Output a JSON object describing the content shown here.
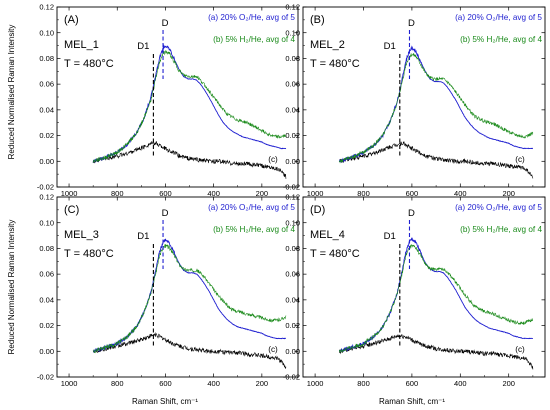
{
  "colors": {
    "a": "#1f1fd0",
    "b": "#1a8a1a",
    "c": "#000000",
    "marker": "#000000",
    "markerD": "#2020d0"
  },
  "y_axis_label": "Reduced Normalised Raman Intensity",
  "x_axis_label": "Raman Shift, cm⁻¹",
  "chart_data": [
    {
      "type": "line",
      "panel": "(A)",
      "sample": "MEL_1",
      "temperature": "T = 480°C",
      "xlabel": "Raman Shift, cm⁻¹",
      "ylabel": "Reduced Normalised Raman Intensity",
      "xlim": [
        1050,
        50
      ],
      "ylim": [
        -0.02,
        0.12
      ],
      "xticks": [
        1000,
        800,
        600,
        400,
        200
      ],
      "yticks": [
        -0.02,
        0.0,
        0.02,
        0.04,
        0.06,
        0.08,
        0.1,
        0.12
      ],
      "markers": [
        {
          "label": "D1",
          "x": 650
        },
        {
          "label": "D",
          "x": 610
        }
      ],
      "series": [
        {
          "name": "(a) 20% O₂/He, avg of 5",
          "key": "a",
          "x": [
            900,
            850,
            800,
            760,
            720,
            690,
            660,
            640,
            625,
            610,
            600,
            585,
            565,
            545,
            525,
            505,
            485,
            470,
            455,
            440,
            420,
            400,
            380,
            360,
            340,
            320,
            300,
            280,
            260,
            240,
            220,
            200,
            180,
            160,
            140,
            120,
            100
          ],
          "y": [
            0.0,
            0.003,
            0.007,
            0.013,
            0.022,
            0.033,
            0.05,
            0.067,
            0.08,
            0.088,
            0.09,
            0.088,
            0.08,
            0.072,
            0.066,
            0.064,
            0.064,
            0.063,
            0.06,
            0.056,
            0.05,
            0.043,
            0.036,
            0.03,
            0.026,
            0.023,
            0.021,
            0.019,
            0.018,
            0.017,
            0.016,
            0.015,
            0.013,
            0.012,
            0.011,
            0.01,
            0.01
          ]
        },
        {
          "name": "(b) 5% H₂/He,  avg of 4",
          "key": "b",
          "x": [
            900,
            850,
            800,
            760,
            720,
            690,
            660,
            640,
            625,
            610,
            600,
            585,
            565,
            545,
            525,
            505,
            485,
            470,
            455,
            440,
            420,
            400,
            380,
            360,
            340,
            320,
            300,
            280,
            260,
            240,
            220,
            200,
            180,
            160,
            140,
            120,
            100
          ],
          "y": [
            0.0,
            0.003,
            0.007,
            0.013,
            0.022,
            0.033,
            0.048,
            0.064,
            0.077,
            0.084,
            0.085,
            0.084,
            0.078,
            0.071,
            0.067,
            0.066,
            0.066,
            0.066,
            0.063,
            0.06,
            0.055,
            0.05,
            0.045,
            0.04,
            0.036,
            0.034,
            0.032,
            0.031,
            0.03,
            0.028,
            0.026,
            0.024,
            0.022,
            0.02,
            0.019,
            0.019,
            0.02
          ]
        },
        {
          "name": "(c)",
          "key": "c",
          "x": [
            900,
            850,
            800,
            760,
            720,
            690,
            660,
            640,
            620,
            600,
            570,
            540,
            500,
            460,
            420,
            380,
            340,
            300,
            260,
            220,
            180,
            150,
            130,
            115,
            100
          ],
          "y": [
            0.0,
            0.002,
            0.004,
            0.006,
            0.009,
            0.011,
            0.014,
            0.014,
            0.012,
            0.01,
            0.007,
            0.004,
            0.002,
            0.001,
            0.0,
            0.0,
            -0.001,
            -0.002,
            -0.002,
            -0.003,
            -0.004,
            -0.005,
            -0.006,
            -0.009,
            -0.012
          ]
        }
      ]
    },
    {
      "type": "line",
      "panel": "(B)",
      "sample": "MEL_2",
      "temperature": "T = 480°C",
      "xlabel": "Raman Shift, cm⁻¹",
      "ylabel": "Reduced Normalised Raman Intensity",
      "xlim": [
        1050,
        50
      ],
      "ylim": [
        -0.02,
        0.12
      ],
      "xticks": [
        1000,
        800,
        600,
        400,
        200
      ],
      "yticks": [
        -0.02,
        0.0,
        0.02,
        0.04,
        0.06,
        0.08,
        0.1,
        0.12
      ],
      "markers": [
        {
          "label": "D1",
          "x": 650
        },
        {
          "label": "D",
          "x": 610
        }
      ],
      "series": [
        {
          "name": "(a) 20% O₂/He, avg of 5",
          "key": "a",
          "x": [
            900,
            850,
            800,
            760,
            720,
            690,
            660,
            640,
            625,
            610,
            600,
            585,
            565,
            545,
            525,
            505,
            485,
            470,
            455,
            440,
            420,
            400,
            380,
            360,
            340,
            320,
            300,
            280,
            260,
            240,
            220,
            200,
            180,
            160,
            140,
            120,
            100
          ],
          "y": [
            0.0,
            0.003,
            0.007,
            0.012,
            0.02,
            0.031,
            0.047,
            0.064,
            0.078,
            0.086,
            0.088,
            0.086,
            0.078,
            0.07,
            0.064,
            0.062,
            0.062,
            0.061,
            0.058,
            0.054,
            0.048,
            0.041,
            0.034,
            0.029,
            0.025,
            0.022,
            0.02,
            0.018,
            0.017,
            0.016,
            0.015,
            0.014,
            0.012,
            0.011,
            0.01,
            0.01,
            0.01
          ]
        },
        {
          "name": "(b) 5% H₂/He,  avg of 4",
          "key": "b",
          "x": [
            900,
            850,
            800,
            760,
            720,
            690,
            660,
            640,
            625,
            610,
            600,
            585,
            565,
            545,
            525,
            505,
            485,
            470,
            455,
            440,
            420,
            400,
            380,
            360,
            340,
            320,
            300,
            280,
            260,
            240,
            220,
            200,
            180,
            160,
            140,
            120,
            100
          ],
          "y": [
            0.0,
            0.003,
            0.007,
            0.012,
            0.02,
            0.031,
            0.046,
            0.062,
            0.075,
            0.082,
            0.083,
            0.082,
            0.076,
            0.069,
            0.065,
            0.064,
            0.064,
            0.064,
            0.062,
            0.059,
            0.054,
            0.049,
            0.044,
            0.039,
            0.035,
            0.033,
            0.031,
            0.03,
            0.029,
            0.027,
            0.025,
            0.023,
            0.021,
            0.02,
            0.019,
            0.02,
            0.022
          ]
        },
        {
          "name": "(c)",
          "key": "c",
          "x": [
            900,
            850,
            800,
            760,
            720,
            690,
            660,
            640,
            620,
            600,
            570,
            540,
            500,
            460,
            420,
            380,
            340,
            300,
            260,
            220,
            180,
            150,
            130,
            115,
            100
          ],
          "y": [
            0.0,
            0.002,
            0.004,
            0.006,
            0.009,
            0.011,
            0.013,
            0.014,
            0.012,
            0.01,
            0.007,
            0.004,
            0.002,
            0.001,
            0.0,
            0.0,
            -0.001,
            -0.002,
            -0.002,
            -0.003,
            -0.004,
            -0.005,
            -0.006,
            -0.009,
            -0.013
          ]
        }
      ]
    },
    {
      "type": "line",
      "panel": "(C)",
      "sample": "MEL_3",
      "temperature": "T = 480°C",
      "xlabel": "Raman Shift, cm⁻¹",
      "ylabel": "Reduced Normalised Raman Intensity",
      "xlim": [
        1050,
        50
      ],
      "ylim": [
        -0.02,
        0.12
      ],
      "xticks": [
        1000,
        800,
        600,
        400,
        200
      ],
      "yticks": [
        -0.02,
        0.0,
        0.02,
        0.04,
        0.06,
        0.08,
        0.1,
        0.12
      ],
      "markers": [
        {
          "label": "D1",
          "x": 650
        },
        {
          "label": "D",
          "x": 610
        }
      ],
      "series": [
        {
          "name": "(a) 20% O₂/He, avg of 5",
          "key": "a",
          "x": [
            900,
            850,
            800,
            760,
            720,
            690,
            660,
            640,
            625,
            610,
            600,
            585,
            565,
            545,
            525,
            505,
            485,
            470,
            455,
            440,
            420,
            400,
            380,
            360,
            340,
            320,
            300,
            280,
            260,
            240,
            220,
            200,
            180,
            160,
            140,
            120,
            100
          ],
          "y": [
            0.0,
            0.003,
            0.006,
            0.011,
            0.019,
            0.03,
            0.046,
            0.063,
            0.077,
            0.085,
            0.087,
            0.085,
            0.077,
            0.069,
            0.063,
            0.061,
            0.061,
            0.06,
            0.057,
            0.053,
            0.047,
            0.04,
            0.033,
            0.028,
            0.024,
            0.021,
            0.019,
            0.018,
            0.017,
            0.016,
            0.015,
            0.014,
            0.012,
            0.011,
            0.01,
            0.01,
            0.01
          ]
        },
        {
          "name": "(b) 5% H₂/He,  avg of 4",
          "key": "b",
          "x": [
            900,
            850,
            800,
            760,
            720,
            690,
            660,
            640,
            625,
            610,
            600,
            585,
            565,
            545,
            525,
            505,
            485,
            470,
            455,
            440,
            420,
            400,
            380,
            360,
            340,
            320,
            300,
            280,
            260,
            240,
            220,
            200,
            180,
            160,
            140,
            120,
            100
          ],
          "y": [
            0.0,
            0.003,
            0.006,
            0.011,
            0.019,
            0.03,
            0.045,
            0.061,
            0.074,
            0.081,
            0.082,
            0.081,
            0.075,
            0.068,
            0.064,
            0.063,
            0.063,
            0.063,
            0.061,
            0.058,
            0.053,
            0.048,
            0.043,
            0.039,
            0.035,
            0.032,
            0.031,
            0.03,
            0.029,
            0.028,
            0.027,
            0.026,
            0.025,
            0.024,
            0.024,
            0.025,
            0.027
          ]
        },
        {
          "name": "(c)",
          "key": "c",
          "x": [
            900,
            850,
            800,
            760,
            720,
            690,
            660,
            640,
            620,
            600,
            570,
            540,
            500,
            460,
            420,
            380,
            340,
            300,
            260,
            220,
            180,
            150,
            130,
            115,
            100
          ],
          "y": [
            0.0,
            0.002,
            0.004,
            0.006,
            0.008,
            0.01,
            0.012,
            0.013,
            0.011,
            0.009,
            0.006,
            0.004,
            0.002,
            0.001,
            0.0,
            0.0,
            -0.001,
            -0.001,
            -0.002,
            -0.003,
            -0.004,
            -0.005,
            -0.006,
            -0.009,
            -0.013
          ]
        }
      ]
    },
    {
      "type": "line",
      "panel": "(D)",
      "sample": "MEL_4",
      "temperature": "T = 480°C",
      "xlabel": "Raman Shift, cm⁻¹",
      "ylabel": "Reduced Normalised Raman Intensity",
      "xlim": [
        1050,
        50
      ],
      "ylim": [
        -0.02,
        0.12
      ],
      "xticks": [
        1000,
        800,
        600,
        400,
        200
      ],
      "yticks": [
        -0.02,
        0.0,
        0.02,
        0.04,
        0.06,
        0.08,
        0.1,
        0.12
      ],
      "markers": [
        {
          "label": "D1",
          "x": 650
        },
        {
          "label": "D",
          "x": 610
        }
      ],
      "series": [
        {
          "name": "(a) 20% O₂/He, avg of 5",
          "key": "a",
          "x": [
            900,
            850,
            800,
            760,
            720,
            690,
            660,
            640,
            625,
            610,
            600,
            585,
            565,
            545,
            525,
            505,
            485,
            470,
            455,
            440,
            420,
            400,
            380,
            360,
            340,
            320,
            300,
            280,
            260,
            240,
            220,
            200,
            180,
            160,
            140,
            120,
            100
          ],
          "y": [
            0.0,
            0.003,
            0.006,
            0.011,
            0.019,
            0.03,
            0.046,
            0.063,
            0.077,
            0.085,
            0.087,
            0.085,
            0.077,
            0.069,
            0.064,
            0.062,
            0.062,
            0.061,
            0.058,
            0.054,
            0.048,
            0.041,
            0.034,
            0.029,
            0.025,
            0.022,
            0.02,
            0.018,
            0.017,
            0.016,
            0.015,
            0.014,
            0.012,
            0.011,
            0.01,
            0.01,
            0.01
          ]
        },
        {
          "name": "(b) 5% H₂/He,  avg of 4",
          "key": "b",
          "x": [
            900,
            850,
            800,
            760,
            720,
            690,
            660,
            640,
            625,
            610,
            600,
            585,
            565,
            545,
            525,
            505,
            485,
            470,
            455,
            440,
            420,
            400,
            380,
            360,
            340,
            320,
            300,
            280,
            260,
            240,
            220,
            200,
            180,
            160,
            140,
            120,
            100
          ],
          "y": [
            0.0,
            0.003,
            0.006,
            0.011,
            0.019,
            0.03,
            0.045,
            0.061,
            0.074,
            0.081,
            0.082,
            0.081,
            0.075,
            0.068,
            0.064,
            0.064,
            0.064,
            0.064,
            0.062,
            0.059,
            0.054,
            0.049,
            0.044,
            0.039,
            0.035,
            0.033,
            0.031,
            0.03,
            0.029,
            0.027,
            0.026,
            0.024,
            0.023,
            0.022,
            0.022,
            0.023,
            0.025
          ]
        },
        {
          "name": "(c)",
          "key": "c",
          "x": [
            900,
            850,
            800,
            760,
            720,
            690,
            660,
            640,
            620,
            600,
            570,
            540,
            500,
            460,
            420,
            380,
            340,
            300,
            260,
            220,
            180,
            150,
            130,
            115,
            100
          ],
          "y": [
            0.0,
            0.002,
            0.004,
            0.006,
            0.008,
            0.01,
            0.012,
            0.012,
            0.011,
            0.009,
            0.006,
            0.004,
            0.002,
            0.001,
            0.0,
            0.0,
            -0.001,
            -0.002,
            -0.002,
            -0.003,
            -0.004,
            -0.005,
            -0.006,
            -0.009,
            -0.013
          ]
        }
      ]
    }
  ]
}
